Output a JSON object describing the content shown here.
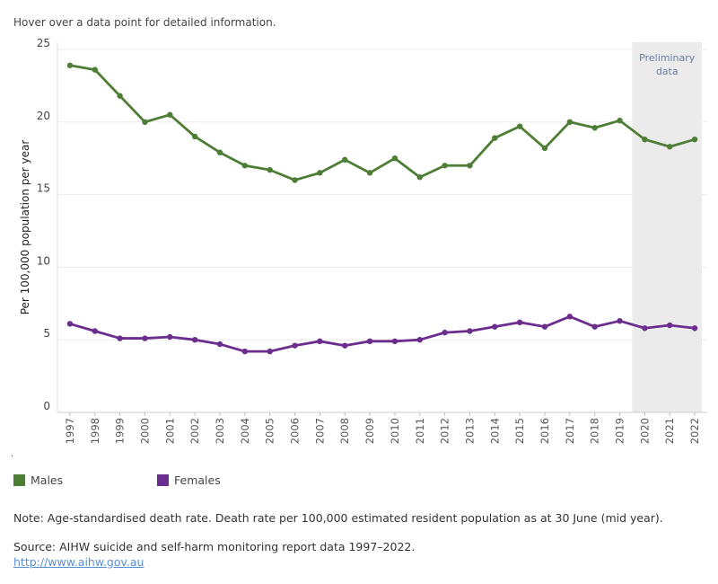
{
  "hint": "Hover over a data point for detailed information.",
  "chart_data": {
    "type": "line",
    "ylabel": "Per 100,000 population per year",
    "xlabel": "",
    "ylim": [
      0,
      25
    ],
    "yticks": [
      0,
      5,
      10,
      15,
      20,
      25
    ],
    "grid": true,
    "x": [
      1997,
      1998,
      1999,
      2000,
      2001,
      2002,
      2003,
      2004,
      2005,
      2006,
      2007,
      2008,
      2009,
      2010,
      2011,
      2012,
      2013,
      2014,
      2015,
      2016,
      2017,
      2018,
      2019,
      2020,
      2021,
      2022
    ],
    "series": [
      {
        "name": "Males",
        "color": "#4e7e35",
        "values": [
          23.9,
          23.6,
          21.8,
          20.0,
          20.5,
          19.0,
          17.9,
          17.0,
          16.7,
          16.0,
          16.5,
          17.4,
          16.5,
          17.5,
          16.2,
          17.0,
          17.0,
          18.9,
          19.7,
          18.2,
          20.0,
          19.6,
          20.1,
          18.8,
          18.3,
          18.8
        ]
      },
      {
        "name": "Females",
        "color": "#6b2d8e",
        "values": [
          6.1,
          5.6,
          5.1,
          5.1,
          5.2,
          5.0,
          4.7,
          4.2,
          4.2,
          4.6,
          4.9,
          4.6,
          4.9,
          4.9,
          5.0,
          5.5,
          5.6,
          5.9,
          6.2,
          5.9,
          6.6,
          5.9,
          6.3,
          5.8,
          6.0,
          5.8
        ]
      }
    ],
    "shaded_region": {
      "from": 2020,
      "to": 2022,
      "label_line1": "Preliminary",
      "label_line2": "data",
      "color": "#ebebeb",
      "label_color": "#6b7fa3"
    }
  },
  "legend": [
    {
      "label": "Males",
      "color": "#4e7e35"
    },
    {
      "label": "Females",
      "color": "#6b2d8e"
    }
  ],
  "dot": ".",
  "note": "Note: Age-standardised death rate. Death rate per 100,000 estimated resident population as at 30 June (mid year).",
  "source": "Source: AIHW suicide and self-harm monitoring report data 1997–2022.",
  "link": "http://www.aihw.gov.au"
}
